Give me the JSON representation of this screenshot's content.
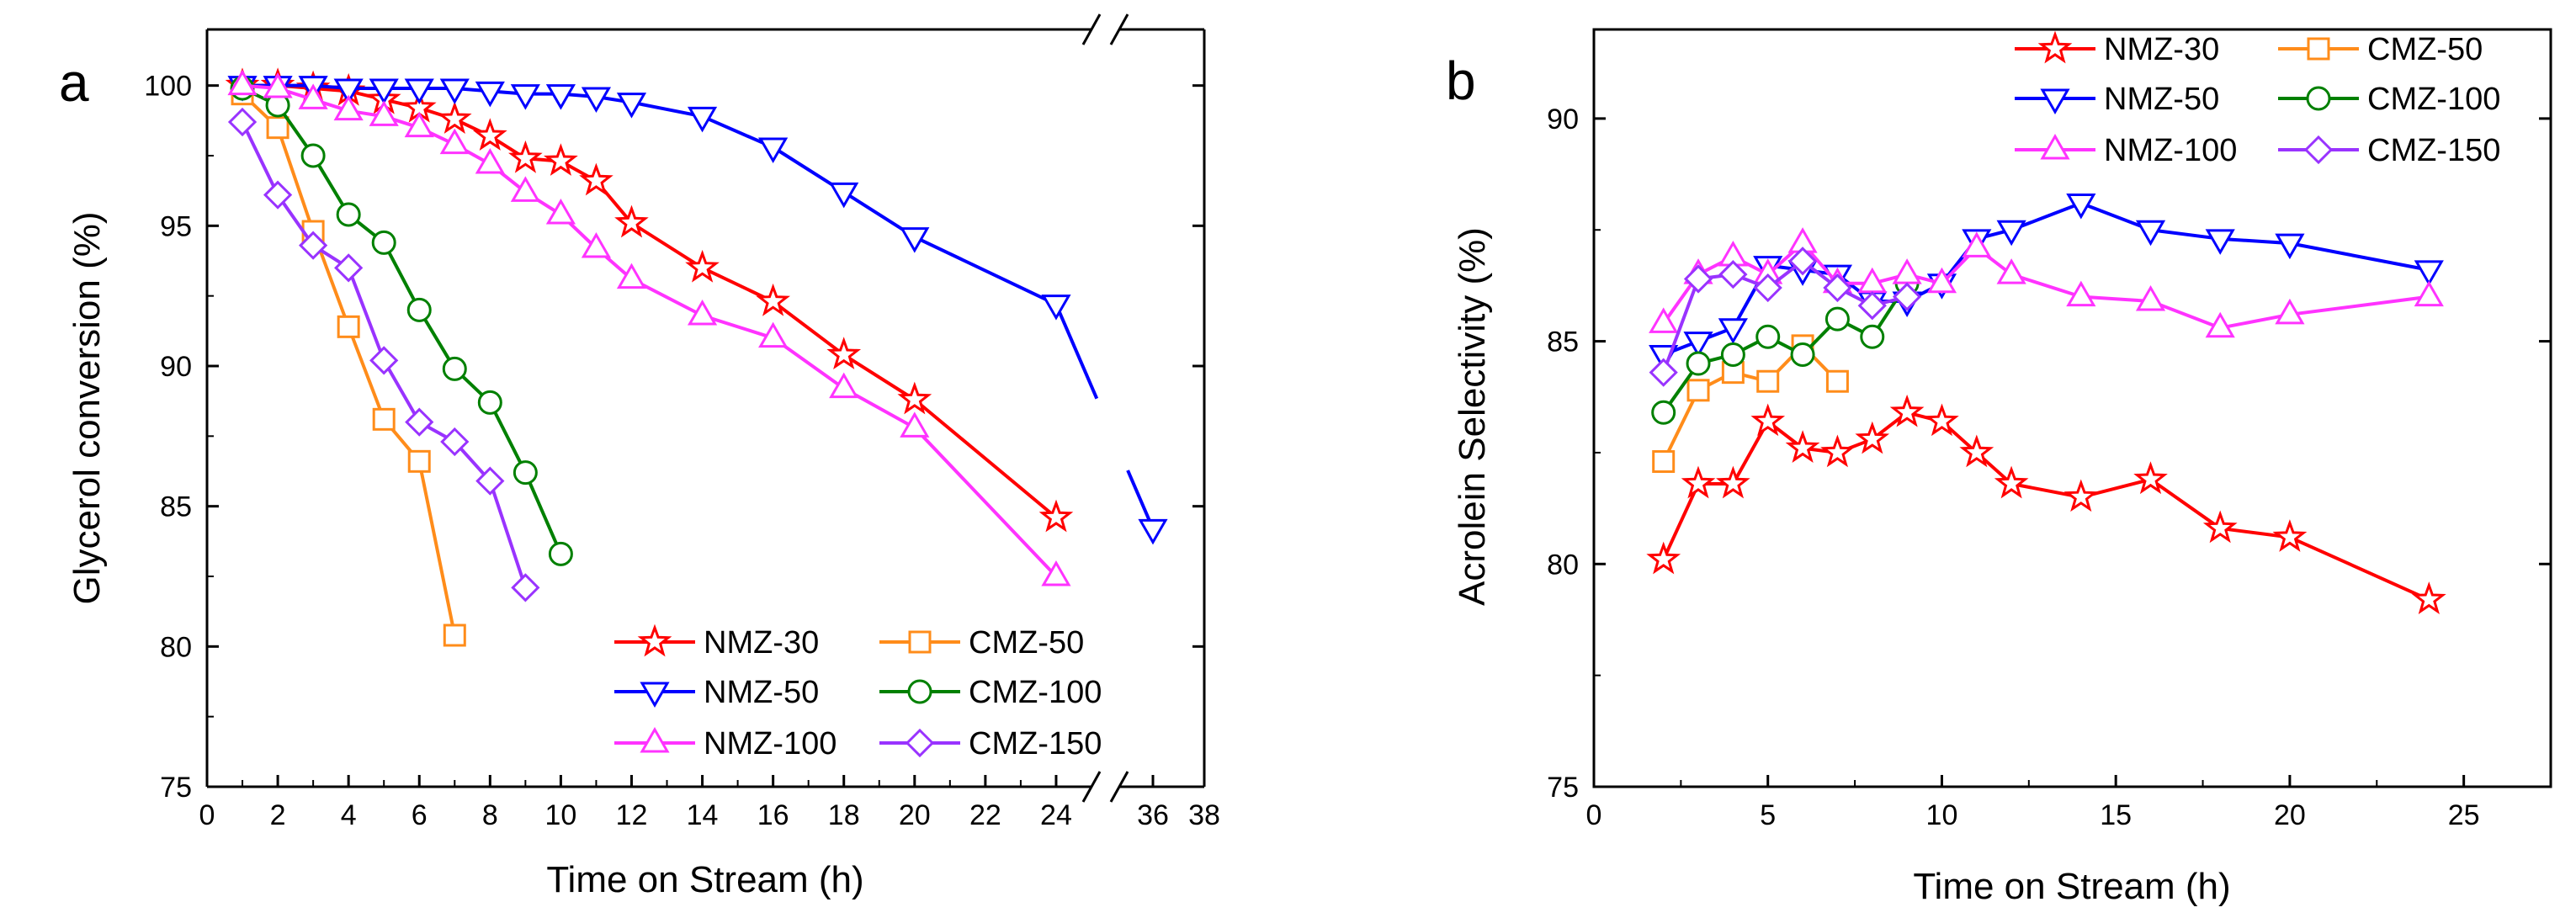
{
  "chart_data": [
    {
      "panel": "a",
      "type": "line",
      "xlabel": "Time on Stream (h)",
      "ylabel": "Glycerol conversion (%)",
      "ylim": [
        75,
        102
      ],
      "yticks": [
        75,
        80,
        85,
        90,
        95,
        100
      ],
      "xlim": [
        0,
        38
      ],
      "axis_break": [
        25,
        35
      ],
      "xticks": [
        0,
        2,
        4,
        6,
        8,
        10,
        12,
        14,
        16,
        18,
        20,
        22,
        24,
        36,
        38
      ],
      "legend_position": "bottom-right",
      "legend": [
        [
          "NMZ-30",
          "CMZ-50"
        ],
        [
          "NMZ-50",
          "CMZ-100"
        ],
        [
          "NMZ-100",
          "CMZ-150"
        ]
      ],
      "series": [
        {
          "name": "NMZ-30",
          "color": "#ff0000",
          "marker": "star",
          "x": [
            1,
            2,
            3,
            4,
            5,
            6,
            7,
            8,
            9,
            10,
            11,
            12,
            14,
            16,
            18,
            20,
            24
          ],
          "y": [
            100,
            100,
            99.9,
            99.8,
            99.5,
            99.2,
            98.8,
            98.2,
            97.4,
            97.3,
            96.6,
            95.1,
            93.5,
            92.3,
            90.4,
            88.8,
            84.6
          ]
        },
        {
          "name": "CMZ-50",
          "color": "#ff8c1a",
          "marker": "square",
          "x": [
            1,
            2,
            3,
            4,
            5,
            6,
            7
          ],
          "y": [
            99.7,
            98.5,
            94.8,
            91.4,
            88.1,
            86.6,
            80.4
          ]
        },
        {
          "name": "NMZ-50",
          "color": "#0000ff",
          "marker": "triangle-down",
          "x": [
            1,
            2,
            3,
            4,
            5,
            6,
            7,
            8,
            9,
            10,
            11,
            12,
            14,
            16,
            18,
            20,
            24,
            36
          ],
          "y": [
            100,
            100,
            100,
            99.9,
            99.9,
            99.9,
            99.9,
            99.8,
            99.7,
            99.7,
            99.6,
            99.4,
            98.9,
            97.8,
            96.2,
            94.6,
            92.2,
            84.2
          ],
          "gap_after_x": 24
        },
        {
          "name": "CMZ-100",
          "color": "#008000",
          "marker": "circle",
          "x": [
            1,
            2,
            3,
            4,
            5,
            6,
            7,
            8,
            9,
            10
          ],
          "y": [
            99.9,
            99.3,
            97.5,
            95.4,
            94.4,
            92.0,
            89.9,
            88.7,
            86.2,
            83.3
          ]
        },
        {
          "name": "NMZ-100",
          "color": "#ff33ff",
          "marker": "triangle-up",
          "x": [
            1,
            2,
            3,
            4,
            5,
            6,
            7,
            8,
            9,
            10,
            11,
            12,
            14,
            16,
            18,
            20,
            24
          ],
          "y": [
            100,
            99.9,
            99.5,
            99.1,
            98.9,
            98.5,
            97.9,
            97.2,
            96.2,
            95.4,
            94.2,
            93.1,
            91.8,
            91.0,
            89.2,
            87.8,
            82.5
          ]
        },
        {
          "name": "CMZ-150",
          "color": "#9933ff",
          "marker": "diamond",
          "x": [
            1,
            2,
            3,
            4,
            5,
            6,
            7,
            8,
            9
          ],
          "y": [
            98.7,
            96.1,
            94.3,
            93.5,
            90.2,
            88.0,
            87.3,
            85.9,
            82.1
          ]
        }
      ]
    },
    {
      "panel": "b",
      "type": "line",
      "xlabel": "Time on Stream (h)",
      "ylabel": "Acrolein Selectivity (%)",
      "ylim": [
        75,
        92
      ],
      "yticks": [
        75,
        80,
        85,
        90
      ],
      "xlim": [
        0,
        27.5
      ],
      "xticks": [
        0,
        5,
        10,
        15,
        20,
        25
      ],
      "legend_position": "top-right",
      "legend": [
        [
          "NMZ-30",
          "CMZ-50"
        ],
        [
          "NMZ-50",
          "CMZ-100"
        ],
        [
          "NMZ-100",
          "CMZ-150"
        ]
      ],
      "series": [
        {
          "name": "NMZ-30",
          "color": "#ff0000",
          "marker": "star",
          "x": [
            2,
            3,
            4,
            5,
            6,
            7,
            8,
            9,
            10,
            11,
            12,
            14,
            16,
            18,
            20,
            24
          ],
          "y": [
            80.1,
            81.8,
            81.8,
            83.2,
            82.6,
            82.5,
            82.8,
            83.4,
            83.2,
            82.5,
            81.8,
            81.5,
            81.9,
            80.8,
            80.6,
            79.2
          ]
        },
        {
          "name": "CMZ-50",
          "color": "#ff8c1a",
          "marker": "square",
          "x": [
            2,
            3,
            4,
            5,
            6,
            7
          ],
          "y": [
            82.3,
            83.9,
            84.3,
            84.1,
            84.9,
            84.1
          ]
        },
        {
          "name": "NMZ-50",
          "color": "#0000ff",
          "marker": "triangle-down",
          "x": [
            2,
            3,
            4,
            5,
            6,
            7,
            8,
            9,
            10,
            11,
            12,
            14,
            16,
            18,
            20,
            24
          ],
          "y": [
            84.7,
            85.0,
            85.3,
            86.7,
            86.6,
            86.5,
            85.9,
            85.9,
            86.3,
            87.3,
            87.5,
            88.1,
            87.5,
            87.3,
            87.2,
            86.6
          ]
        },
        {
          "name": "CMZ-100",
          "color": "#008000",
          "marker": "circle",
          "x": [
            2,
            3,
            4,
            5,
            6,
            7,
            8,
            9
          ],
          "y": [
            83.4,
            84.5,
            84.7,
            85.1,
            84.7,
            85.5,
            85.1,
            86.3
          ]
        },
        {
          "name": "NMZ-100",
          "color": "#ff33ff",
          "marker": "triangle-up",
          "x": [
            2,
            3,
            4,
            5,
            6,
            7,
            8,
            9,
            10,
            11,
            12,
            14,
            16,
            18,
            20,
            24
          ],
          "y": [
            85.4,
            86.5,
            86.9,
            86.5,
            87.2,
            86.3,
            86.3,
            86.5,
            86.3,
            87.1,
            86.5,
            86.0,
            85.9,
            85.3,
            85.6,
            86.0
          ]
        },
        {
          "name": "CMZ-150",
          "color": "#9933ff",
          "marker": "diamond",
          "x": [
            2,
            3,
            4,
            5,
            6,
            7,
            8,
            9
          ],
          "y": [
            84.3,
            86.4,
            86.5,
            86.2,
            86.8,
            86.2,
            85.8,
            86.0
          ]
        }
      ]
    }
  ]
}
